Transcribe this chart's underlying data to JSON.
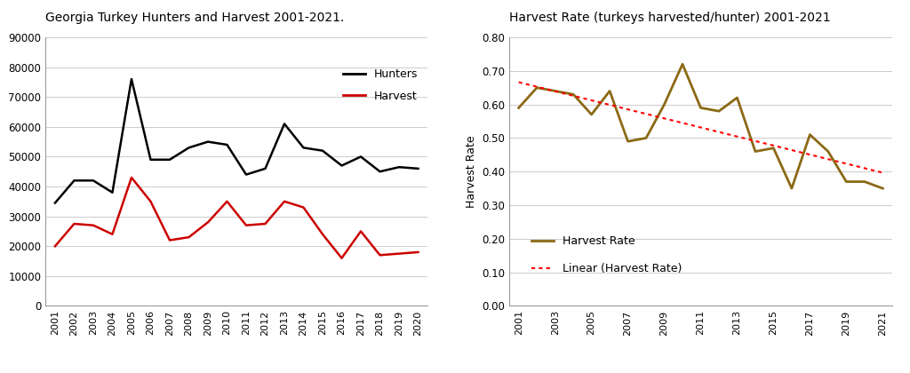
{
  "left_title": "Georgia Turkey Hunters and Harvest 2001-2021.",
  "right_title": "Harvest Rate (turkeys harvested/hunter) 2001-2021",
  "years_left": [
    2001,
    2002,
    2003,
    2004,
    2005,
    2006,
    2007,
    2008,
    2009,
    2010,
    2011,
    2012,
    2013,
    2014,
    2015,
    2016,
    2017,
    2018,
    2019,
    2020
  ],
  "hunters": [
    34500,
    42000,
    42000,
    38000,
    76000,
    49000,
    49000,
    53000,
    55000,
    54000,
    44000,
    46000,
    61000,
    53000,
    52000,
    47000,
    50000,
    45000,
    46500,
    46000
  ],
  "harvest": [
    20000,
    27500,
    27000,
    24000,
    43000,
    35000,
    22000,
    23000,
    28000,
    35000,
    27000,
    27500,
    35000,
    33000,
    24000,
    16000,
    25000,
    17000,
    17500,
    18000
  ],
  "hunters_color": "#000000",
  "harvest_color": "#cc0000",
  "left_ylim": [
    0,
    90000
  ],
  "left_yticks": [
    0,
    10000,
    20000,
    30000,
    40000,
    50000,
    60000,
    70000,
    80000,
    90000
  ],
  "years_right": [
    2001,
    2002,
    2003,
    2004,
    2005,
    2006,
    2007,
    2008,
    2009,
    2010,
    2011,
    2012,
    2013,
    2014,
    2015,
    2016,
    2017,
    2018,
    2019,
    2020,
    2021
  ],
  "harvest_rate": [
    0.59,
    0.65,
    0.64,
    0.63,
    0.57,
    0.64,
    0.49,
    0.5,
    0.6,
    0.72,
    0.59,
    0.58,
    0.62,
    0.46,
    0.47,
    0.35,
    0.51,
    0.46,
    0.37,
    0.37,
    0.35
  ],
  "harvest_rate_color": "#8B6914",
  "linear_color": "#ff0000",
  "right_ylim": [
    0.0,
    0.8
  ],
  "right_yticks": [
    0.0,
    0.1,
    0.2,
    0.3,
    0.4,
    0.5,
    0.6,
    0.7,
    0.8
  ],
  "right_ylabel": "Harvest Rate",
  "bg_color": "#ffffff",
  "grid_color": "#cccccc"
}
